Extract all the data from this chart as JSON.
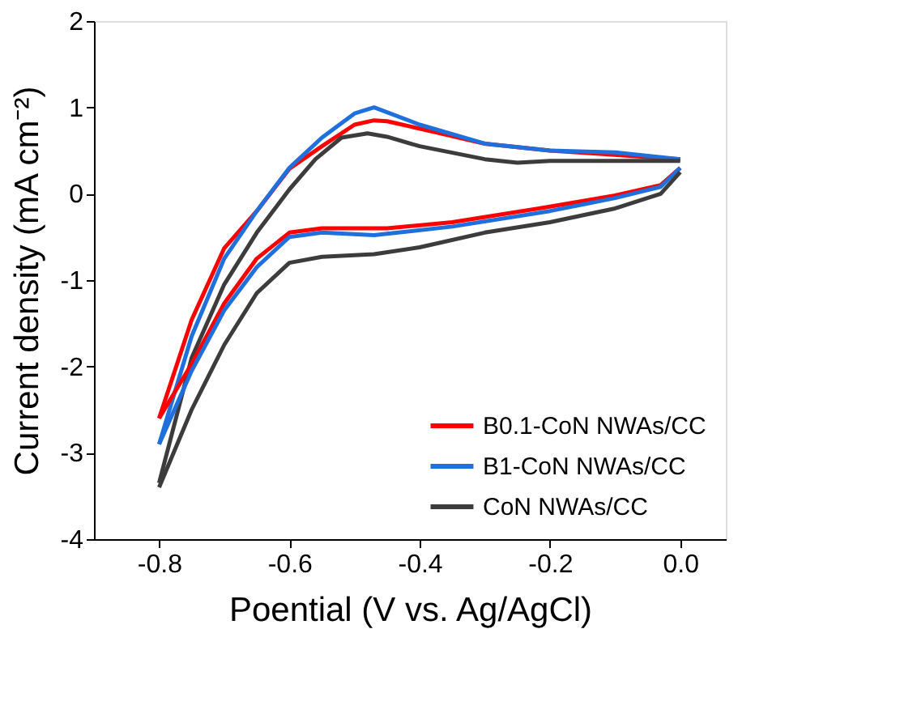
{
  "chart_data": {
    "type": "line",
    "xlabel": "Poential (V vs. Ag/AgCl)",
    "ylabel": "Current density (mA cm⁻²)",
    "xlim": [
      -0.9,
      0.07
    ],
    "xticks": [
      {
        "value": -0.8,
        "label": "-0.8"
      },
      {
        "value": -0.6,
        "label": "-0.6"
      },
      {
        "value": -0.4,
        "label": "-0.4"
      },
      {
        "value": -0.2,
        "label": "-0.2"
      },
      {
        "value": 0,
        "label": "0.0"
      }
    ],
    "ylim": [
      -4,
      2
    ],
    "yticks": [
      -4,
      -3,
      -2,
      -1,
      0,
      1,
      2
    ],
    "grid": false,
    "legend": "bottom right",
    "series": [
      {
        "name": "B0.1-CoN NWAs/CC",
        "color": "#ff0000",
        "x": [
          0.0,
          -0.1,
          -0.2,
          -0.3,
          -0.38,
          -0.45,
          -0.47,
          -0.5,
          -0.55,
          -0.6,
          -0.65,
          -0.7,
          -0.75,
          -0.8
        ],
        "values": [
          0.4,
          0.45,
          0.5,
          0.58,
          0.72,
          0.84,
          0.85,
          0.8,
          0.55,
          0.29,
          -0.2,
          -0.63,
          -1.46,
          -2.6
        ]
      },
      {
        "color": "#ff0000",
        "x": [
          -0.8,
          -0.75,
          -0.7,
          -0.65,
          -0.6,
          -0.55,
          -0.45,
          -0.35,
          -0.2,
          -0.1,
          -0.03,
          0.0
        ],
        "values": [
          -2.6,
          -1.97,
          -1.27,
          -0.75,
          -0.45,
          -0.4,
          -0.4,
          -0.33,
          -0.15,
          -0.02,
          0.1,
          0.3
        ]
      },
      {
        "name": "B1-CoN NWAs/CC",
        "color": "#1f6fdc",
        "x": [
          0.0,
          -0.1,
          -0.2,
          -0.3,
          -0.4,
          -0.47,
          -0.5,
          -0.55,
          -0.6,
          -0.65,
          -0.7,
          -0.75,
          -0.8
        ],
        "values": [
          0.4,
          0.48,
          0.5,
          0.58,
          0.8,
          1.0,
          0.93,
          0.65,
          0.3,
          -0.2,
          -0.75,
          -1.65,
          -2.9
        ]
      },
      {
        "color": "#1f6fdc",
        "x": [
          -0.8,
          -0.75,
          -0.7,
          -0.65,
          -0.6,
          -0.55,
          -0.47,
          -0.35,
          -0.2,
          -0.1,
          -0.03,
          0.0
        ],
        "values": [
          -2.9,
          -2.05,
          -1.35,
          -0.85,
          -0.5,
          -0.45,
          -0.48,
          -0.38,
          -0.2,
          -0.05,
          0.08,
          0.3
        ]
      },
      {
        "name": "CoN NWAs/CC",
        "color": "#3c3c3c",
        "x": [
          0.0,
          -0.1,
          -0.2,
          -0.25,
          -0.3,
          -0.4,
          -0.45,
          -0.48,
          -0.52,
          -0.56,
          -0.6,
          -0.65,
          -0.7,
          -0.75,
          -0.8
        ],
        "values": [
          0.38,
          0.38,
          0.38,
          0.36,
          0.4,
          0.55,
          0.66,
          0.7,
          0.65,
          0.4,
          0.05,
          -0.45,
          -1.05,
          -1.9,
          -3.35
        ]
      },
      {
        "color": "#3c3c3c",
        "x": [
          -0.8,
          -0.75,
          -0.7,
          -0.65,
          -0.6,
          -0.55,
          -0.47,
          -0.4,
          -0.3,
          -0.2,
          -0.1,
          -0.03,
          0.0
        ],
        "values": [
          -3.4,
          -2.5,
          -1.75,
          -1.15,
          -0.8,
          -0.73,
          -0.7,
          -0.62,
          -0.45,
          -0.33,
          -0.17,
          0.0,
          0.25
        ]
      }
    ]
  }
}
